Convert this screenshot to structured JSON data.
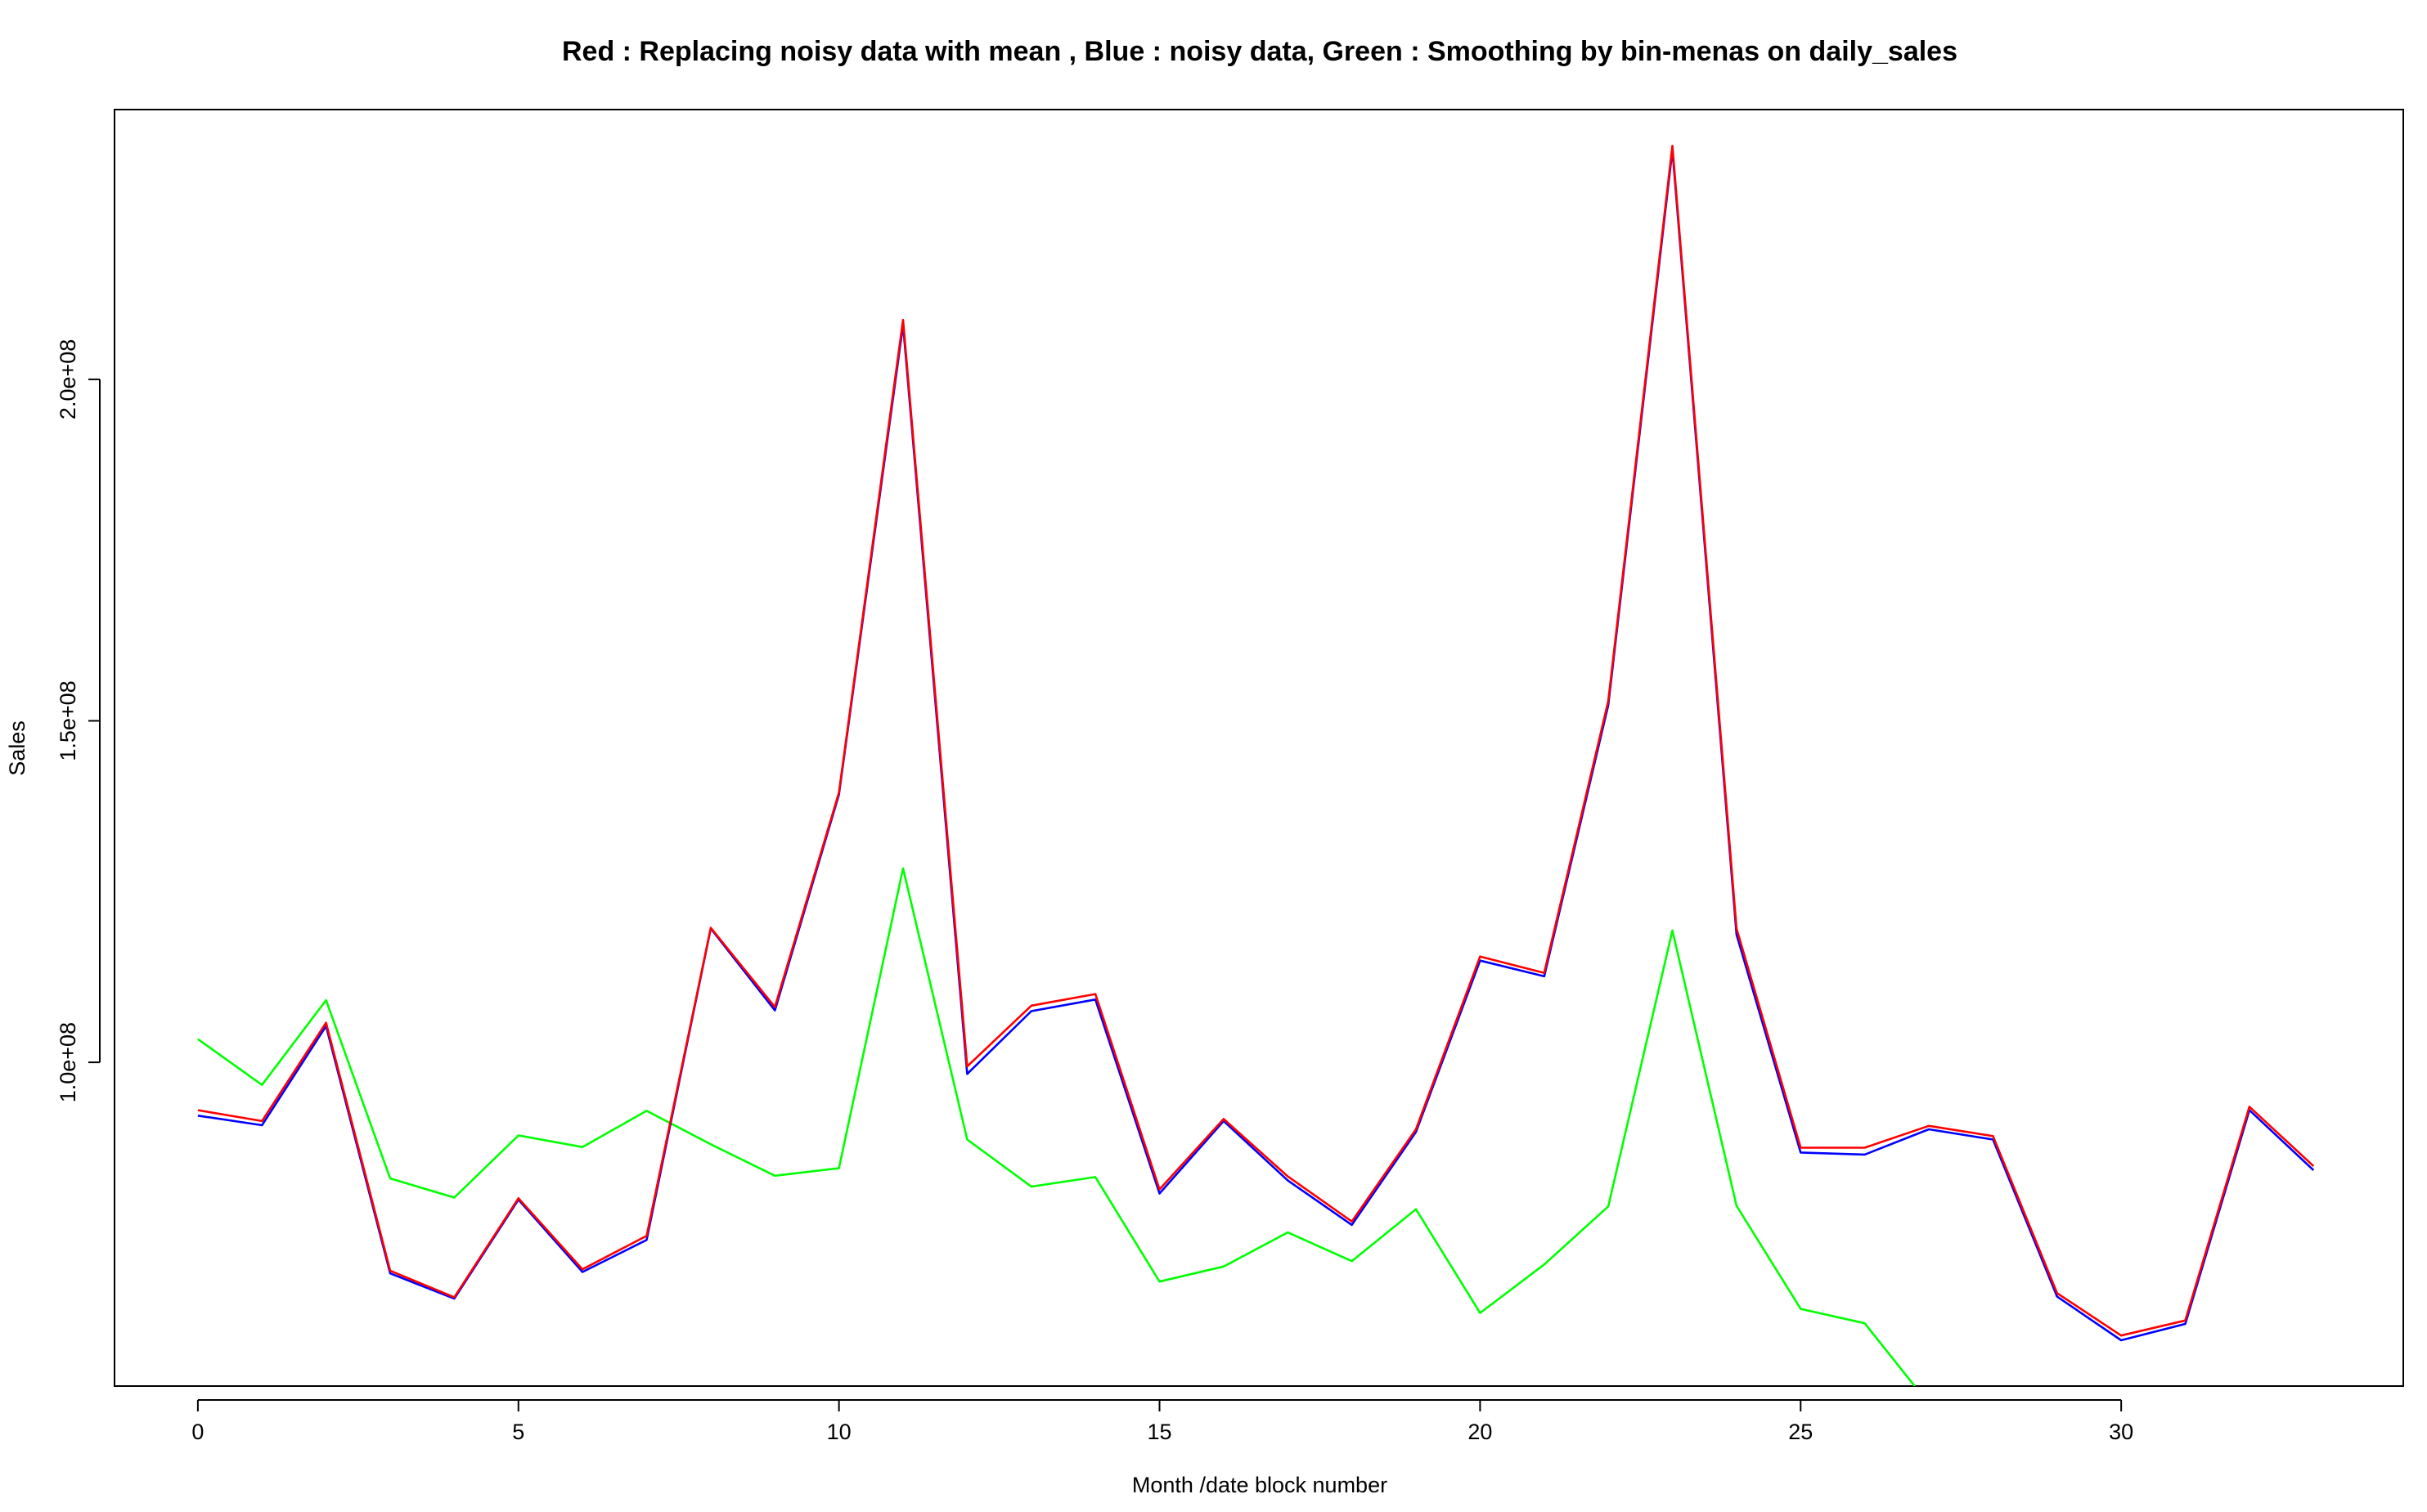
{
  "chart_data": {
    "type": "line",
    "title": "Red : Replacing noisy data with mean   , Blue : noisy data, Green : Smoothing by bin-menas on daily_sales",
    "xlabel": "Month /date block number",
    "ylabel": "Sales",
    "xlim": [
      -1.3,
      34.4
    ],
    "ylim": [
      52600000,
      239500000
    ],
    "x_ticks": [
      0,
      5,
      10,
      15,
      20,
      25,
      30
    ],
    "x_tick_labels": [
      "0",
      "5",
      "10",
      "15",
      "20",
      "25",
      "30"
    ],
    "y_ticks": [
      100000000,
      150000000,
      200000000
    ],
    "y_tick_labels": [
      "1.0e+08",
      "1.5e+08",
      "2.0e+08"
    ],
    "grid": false,
    "legend": "none",
    "x": [
      0,
      1,
      2,
      3,
      4,
      5,
      6,
      7,
      8,
      9,
      10,
      11,
      12,
      13,
      14,
      15,
      16,
      17,
      18,
      19,
      20,
      21,
      22,
      23,
      24,
      25,
      26,
      27,
      28,
      29,
      30,
      31,
      32,
      33
    ],
    "series": [
      {
        "color": "#00ff00",
        "values": [
          103400000,
          96700000,
          109100000,
          83000000,
          80200000,
          89300000,
          87600000,
          92900000,
          88000000,
          83400000,
          84500000,
          128400000,
          88700000,
          81800000,
          83200000,
          67900000,
          70100000,
          75100000,
          70900000,
          78500000,
          63300000,
          70400000,
          78900000,
          119300000,
          79000000,
          63900000,
          61800000,
          50000000,
          null,
          null,
          null,
          null,
          null,
          null
        ]
      },
      {
        "color": "#0000ff",
        "values": [
          92200000,
          90800000,
          105300000,
          69100000,
          65400000,
          79900000,
          69300000,
          74000000,
          119600000,
          107600000,
          139200000,
          208000000,
          98300000,
          107500000,
          109200000,
          80800000,
          91400000,
          82700000,
          76200000,
          89800000,
          114900000,
          112600000,
          152300000,
          233600000,
          118700000,
          86800000,
          86500000,
          90200000,
          88700000,
          65700000,
          59300000,
          61700000,
          93000000,
          84200000
        ]
      },
      {
        "color": "#ff0000",
        "values": [
          93000000,
          91400000,
          105800000,
          69500000,
          65600000,
          80100000,
          69700000,
          74600000,
          119700000,
          108100000,
          139500000,
          208700000,
          99400000,
          108300000,
          110000000,
          81400000,
          91700000,
          83300000,
          76700000,
          90200000,
          115500000,
          113100000,
          152900000,
          234200000,
          119600000,
          87500000,
          87500000,
          90700000,
          89200000,
          66200000,
          60000000,
          62200000,
          93500000,
          84800000
        ]
      }
    ]
  }
}
